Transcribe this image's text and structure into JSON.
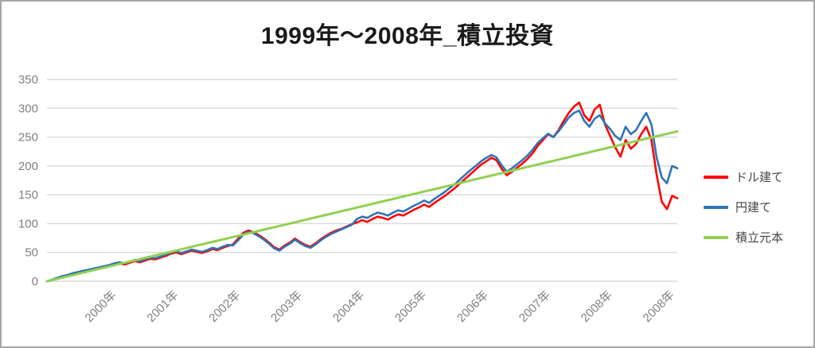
{
  "title": "1999年〜2008年_積立投資",
  "colors": {
    "title_text": "#1a1a1a",
    "axis_label": "#808080",
    "gridline": "#d9d9d9",
    "frame_border": "#a6a6a6",
    "background": "#ffffff"
  },
  "chart_data": {
    "type": "line",
    "title": "1999年〜2008年_積立投資",
    "xlabel": "",
    "ylabel": "",
    "ylim": [
      0,
      350
    ],
    "y_ticks": [
      0,
      50,
      100,
      150,
      200,
      250,
      300,
      350
    ],
    "x_categories": [
      "2000年",
      "2001年",
      "2002年",
      "2003年",
      "2004年",
      "2005年",
      "2006年",
      "2007年",
      "2008年",
      "2008年"
    ],
    "x_unit": "months from 1999 (monthly samples)",
    "grid": "horizontal-only",
    "legend_position": "right",
    "series": [
      {
        "name": "ドル建て",
        "color": "#ff0000",
        "values": [
          0,
          2,
          5,
          8,
          10,
          13,
          15,
          17,
          19,
          21,
          23,
          25,
          26,
          29,
          31,
          29,
          32,
          35,
          33,
          36,
          39,
          38,
          41,
          44,
          48,
          50,
          47,
          50,
          53,
          51,
          49,
          52,
          56,
          54,
          58,
          61,
          64,
          74,
          84,
          88,
          85,
          80,
          74,
          67,
          59,
          55,
          62,
          67,
          74,
          68,
          63,
          60,
          66,
          73,
          79,
          84,
          88,
          91,
          95,
          99,
          102,
          106,
          103,
          108,
          112,
          110,
          107,
          112,
          116,
          114,
          119,
          124,
          128,
          133,
          129,
          136,
          142,
          148,
          155,
          162,
          170,
          178,
          186,
          194,
          202,
          208,
          214,
          210,
          195,
          184,
          190,
          197,
          204,
          212,
          222,
          235,
          245,
          255,
          250,
          262,
          278,
          292,
          303,
          310,
          288,
          278,
          298,
          306,
          272,
          252,
          232,
          216,
          245,
          230,
          238,
          255,
          268,
          245,
          185,
          138,
          125,
          148,
          144
        ]
      },
      {
        "name": "円建て",
        "color": "#2e75b6",
        "values": [
          0,
          3,
          6,
          9,
          11,
          14,
          16,
          18,
          20,
          22,
          24,
          26,
          28,
          31,
          33,
          31,
          34,
          37,
          35,
          38,
          41,
          40,
          43,
          46,
          50,
          52,
          49,
          52,
          55,
          53,
          51,
          54,
          58,
          56,
          60,
          63,
          62,
          71,
          81,
          86,
          83,
          78,
          72,
          65,
          57,
          53,
          60,
          65,
          72,
          66,
          61,
          58,
          64,
          71,
          77,
          82,
          86,
          90,
          94,
          98,
          108,
          112,
          110,
          115,
          119,
          117,
          114,
          119,
          123,
          121,
          126,
          131,
          135,
          140,
          136,
          143,
          149,
          155,
          162,
          169,
          177,
          185,
          193,
          200,
          208,
          214,
          219,
          215,
          201,
          190,
          196,
          203,
          210,
          218,
          228,
          240,
          248,
          256,
          250,
          260,
          272,
          284,
          292,
          296,
          278,
          268,
          282,
          288,
          274,
          264,
          252,
          245,
          268,
          255,
          262,
          278,
          292,
          272,
          215,
          180,
          170,
          200,
          196
        ]
      },
      {
        "name": "積立元本",
        "color": "#92d050",
        "linear": [
          0,
          260
        ]
      }
    ]
  }
}
